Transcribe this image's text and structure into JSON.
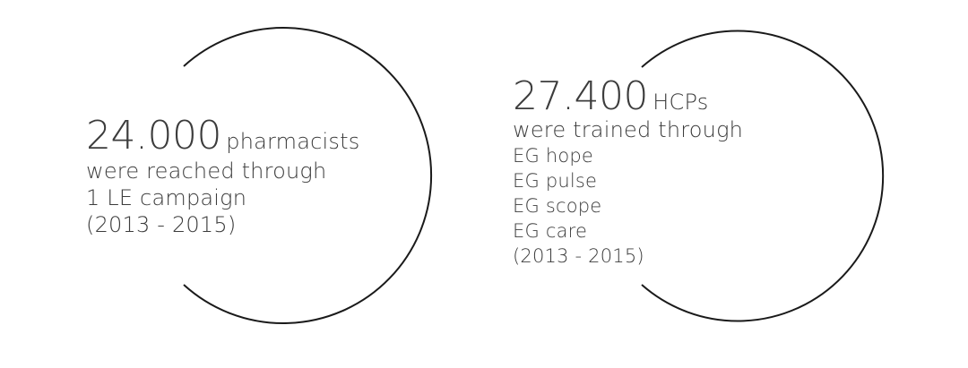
{
  "stats": [
    {
      "number": "24.000",
      "unit": "pharmacists",
      "lines": [
        "were reached through",
        "1 LE campaign",
        "(2013 - 2015)"
      ]
    },
    {
      "number": "27.400",
      "unit": "HCPs",
      "lead_line": "were trained through",
      "lines": [
        "EG hope",
        "EG pulse",
        "EG scope",
        "EG care",
        "(2013 - 2015)"
      ]
    }
  ]
}
